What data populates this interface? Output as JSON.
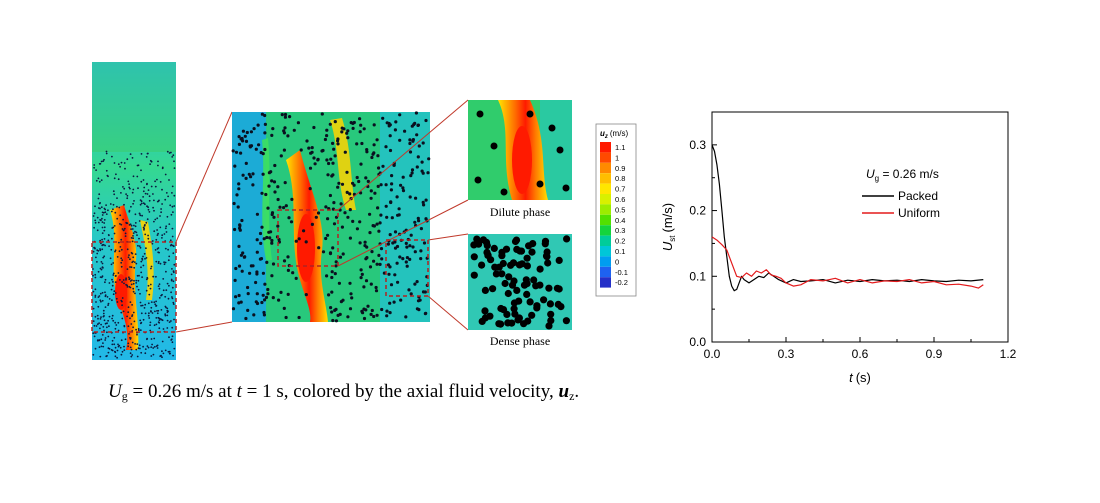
{
  "left_panel": {
    "colorbar_title": "u",
    "colorbar_title_sub": "z",
    "colorbar_unit": "(m/s)",
    "colorbar_ticks": [
      "1.1",
      "1",
      "0.9",
      "0.8",
      "0.7",
      "0.6",
      "0.5",
      "0.4",
      "0.3",
      "0.2",
      "0.1",
      "0",
      "-0.1",
      "-0.2"
    ],
    "colorbar_colors": [
      "#ff1a00",
      "#ff4a00",
      "#ff8a00",
      "#ffbe00",
      "#ffe600",
      "#d8f000",
      "#9cec00",
      "#52e000",
      "#14d43c",
      "#00cc9a",
      "#00c6d8",
      "#009ef0",
      "#1e62f0",
      "#2430c8"
    ],
    "dilute_label": "Dilute phase",
    "dense_label": "Dense phase",
    "caption": {
      "u": "U",
      "u_sub": "g",
      "text1": " = 0.26 m/s at ",
      "t": "t",
      "text2": " = 1 s, colored by the axial fluid velocity, ",
      "uz": "u",
      "uz_sub": "z",
      "text3": "."
    }
  },
  "chart_data": {
    "type": "line",
    "title": "",
    "xlabel": "t",
    "xunit": "(s)",
    "ylabel": "U",
    "ylabel_sub": "st",
    "yunit": "(m/s)",
    "xlim": [
      0.0,
      1.2
    ],
    "ylim": [
      0.0,
      0.35
    ],
    "xticks": [
      0.0,
      0.3,
      0.6,
      0.9,
      1.2
    ],
    "yticks": [
      0.0,
      0.1,
      0.2,
      0.3
    ],
    "xtick_labels": [
      "0.0",
      "0.3",
      "0.6",
      "0.9",
      "1.2"
    ],
    "ytick_labels": [
      "0.0",
      "0.1",
      "0.2",
      "0.3"
    ],
    "grid": false,
    "legend_title": "U",
    "legend_title_sub": "g",
    "legend_title_value": " = 0.26 m/s",
    "legend_position": "upper-right",
    "series": [
      {
        "name": "Packed",
        "color": "#000000",
        "x": [
          0.0,
          0.01,
          0.02,
          0.03,
          0.04,
          0.05,
          0.06,
          0.07,
          0.08,
          0.09,
          0.1,
          0.11,
          0.12,
          0.13,
          0.15,
          0.17,
          0.19,
          0.21,
          0.23,
          0.25,
          0.27,
          0.3,
          0.33,
          0.36,
          0.4,
          0.45,
          0.5,
          0.55,
          0.6,
          0.65,
          0.7,
          0.75,
          0.8,
          0.85,
          0.9,
          0.95,
          1.0,
          1.05,
          1.1
        ],
        "y": [
          0.3,
          0.29,
          0.27,
          0.24,
          0.2,
          0.16,
          0.13,
          0.1,
          0.085,
          0.078,
          0.08,
          0.09,
          0.1,
          0.095,
          0.09,
          0.095,
          0.1,
          0.098,
          0.105,
          0.1,
          0.095,
          0.09,
          0.095,
          0.092,
          0.093,
          0.095,
          0.09,
          0.094,
          0.092,
          0.095,
          0.093,
          0.094,
          0.092,
          0.095,
          0.093,
          0.092,
          0.094,
          0.093,
          0.095
        ]
      },
      {
        "name": "Uniform",
        "color": "#e31a1c",
        "x": [
          0.0,
          0.02,
          0.04,
          0.06,
          0.08,
          0.1,
          0.12,
          0.14,
          0.16,
          0.18,
          0.2,
          0.22,
          0.24,
          0.26,
          0.28,
          0.3,
          0.33,
          0.36,
          0.4,
          0.45,
          0.5,
          0.55,
          0.6,
          0.65,
          0.7,
          0.75,
          0.8,
          0.85,
          0.9,
          0.95,
          1.0,
          1.05,
          1.08,
          1.1
        ],
        "y": [
          0.16,
          0.155,
          0.148,
          0.14,
          0.12,
          0.1,
          0.098,
          0.105,
          0.1,
          0.108,
          0.105,
          0.11,
          0.102,
          0.1,
          0.097,
          0.09,
          0.085,
          0.087,
          0.095,
          0.093,
          0.097,
          0.09,
          0.095,
          0.09,
          0.093,
          0.092,
          0.095,
          0.09,
          0.092,
          0.087,
          0.088,
          0.085,
          0.082,
          0.087
        ]
      }
    ]
  }
}
